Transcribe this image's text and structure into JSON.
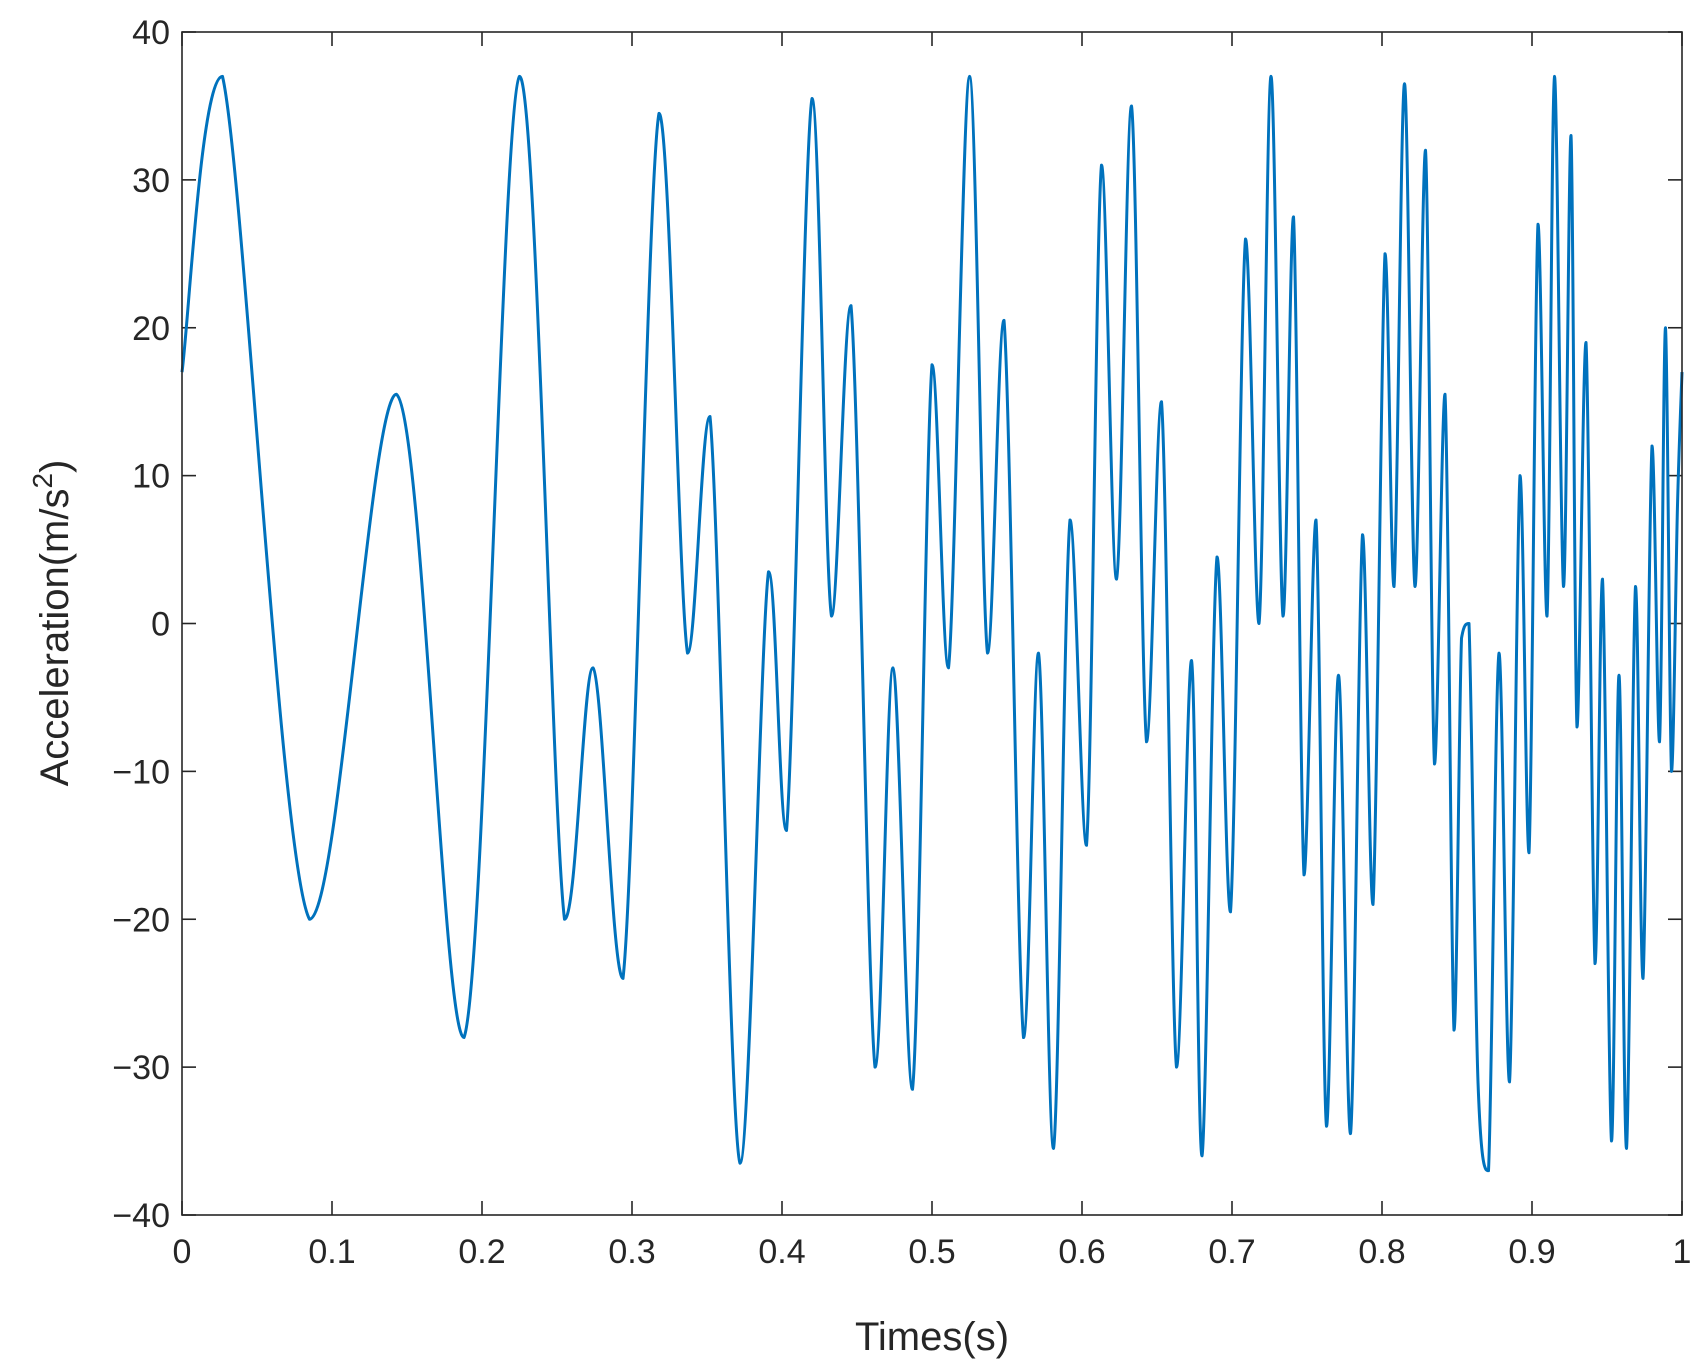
{
  "chart_data": {
    "type": "line",
    "xlabel": "Times(s)",
    "ylabel": "Acceleration(m/s",
    "ylabel_superscript": "2",
    "ylabel_close": ")",
    "xlim": [
      0,
      1
    ],
    "ylim": [
      -40,
      40
    ],
    "grid": false,
    "x_ticks": [
      0,
      0.1,
      0.2,
      0.3,
      0.4,
      0.5,
      0.6,
      0.7,
      0.8,
      0.9,
      1
    ],
    "x_tick_labels": [
      "0",
      "0.1",
      "0.2",
      "0.3",
      "0.4",
      "0.5",
      "0.6",
      "0.7",
      "0.8",
      "0.9",
      "1"
    ],
    "y_ticks": [
      -40,
      -30,
      -20,
      -10,
      0,
      10,
      20,
      30,
      40
    ],
    "y_tick_labels": [
      "−40",
      "−30",
      "−20",
      "−10",
      "0",
      "10",
      "20",
      "30",
      "40"
    ],
    "line_color": "#0072BD",
    "axis_color": "#262626",
    "series": [
      {
        "x": [
          0,
          0.027,
          0.085,
          0.143,
          0.188,
          0.225,
          0.255,
          0.274,
          0.294,
          0.318,
          0.337,
          0.352,
          0.372,
          0.391,
          0.403,
          0.42,
          0.433,
          0.446,
          0.462,
          0.474,
          0.487,
          0.5,
          0.511,
          0.525,
          0.537,
          0.548,
          0.561,
          0.571,
          0.581,
          0.592,
          0.603,
          0.613,
          0.623,
          0.633,
          0.643,
          0.653,
          0.663,
          0.673,
          0.68,
          0.69,
          0.699,
          0.709,
          0.718,
          0.726,
          0.734,
          0.741,
          0.748,
          0.756,
          0.763,
          0.771,
          0.779,
          0.787,
          0.794,
          0.802,
          0.808,
          0.815,
          0.822,
          0.829,
          0.835,
          0.842,
          0.848,
          0.853,
          0.858,
          0.864,
          0.871,
          0.878,
          0.885,
          0.892,
          0.898,
          0.904,
          0.91,
          0.915,
          0.921,
          0.926,
          0.93,
          0.936,
          0.942,
          0.947,
          0.953,
          0.958,
          0.963,
          0.969,
          0.974,
          0.98,
          0.985,
          0.989,
          0.993,
          0.997,
          1.0
        ],
        "y": [
          17,
          37,
          -20,
          15.5,
          -28,
          37,
          -20,
          -3,
          -24,
          34.5,
          -2,
          14,
          -36.5,
          3.5,
          -14,
          35.5,
          0.5,
          21.5,
          -30,
          -3,
          -31.5,
          17.5,
          -3,
          37,
          -2,
          20.5,
          -28,
          -2,
          -35.5,
          7,
          -15,
          31,
          3,
          35,
          -8,
          15,
          -30,
          -2.5,
          -36,
          4.5,
          -19.5,
          26,
          0,
          37,
          0.5,
          27.5,
          -17,
          7,
          -34,
          -3.5,
          -34.5,
          6,
          -19,
          25,
          2.5,
          36.5,
          2.5,
          32,
          -9.5,
          15.5,
          -27.5,
          -1,
          0,
          -31,
          -37,
          -2,
          -31,
          10,
          -15.5,
          27,
          0.5,
          37,
          2.5,
          33,
          -7,
          19,
          -23,
          3,
          -35,
          -3.5,
          -35.5,
          2.5,
          -24,
          12,
          -8,
          20,
          -10,
          8,
          17
        ]
      }
    ]
  }
}
